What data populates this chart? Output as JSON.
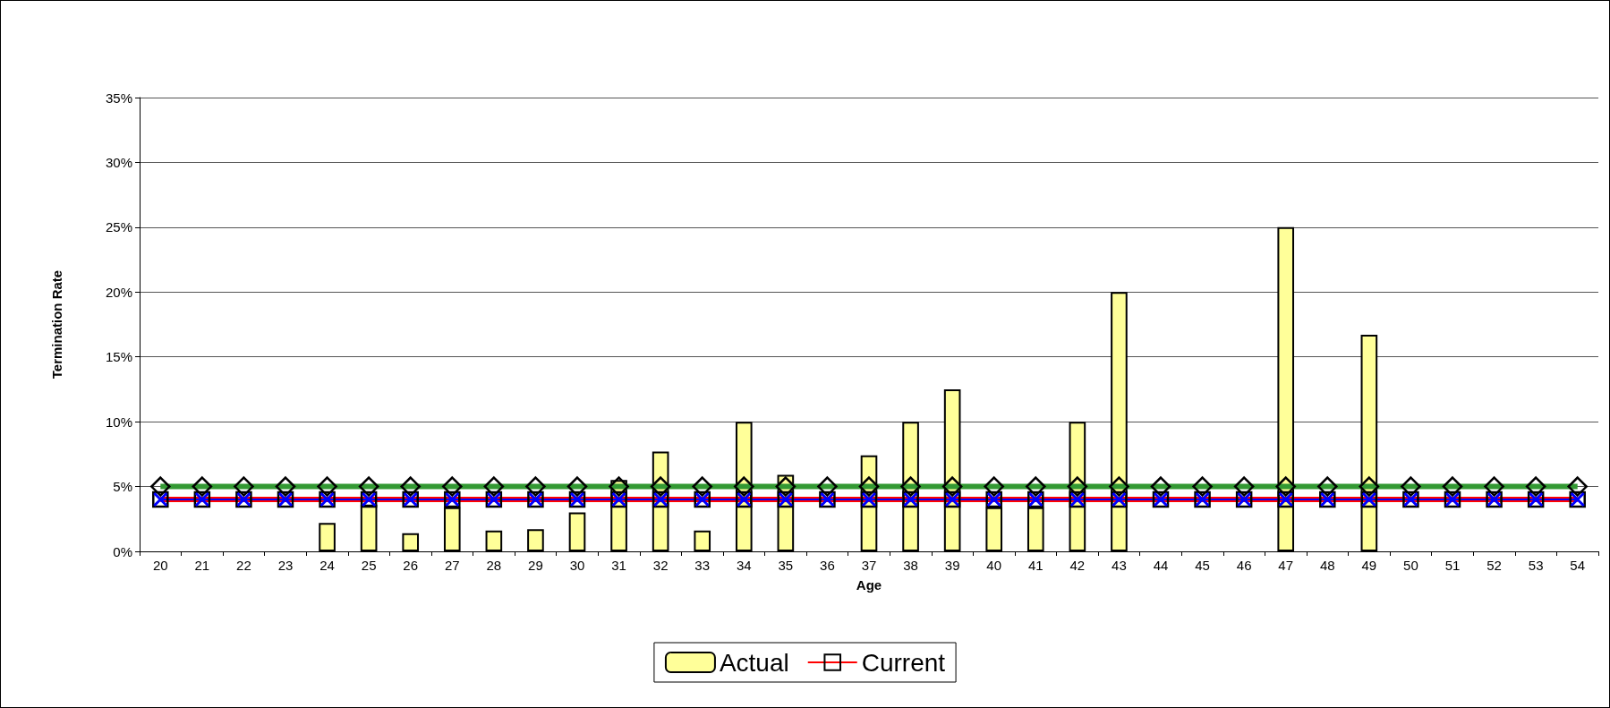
{
  "chart_data": {
    "type": "bar",
    "xlabel": "Age",
    "ylabel": "Termination Rate",
    "categories": [
      "20",
      "21",
      "22",
      "23",
      "24",
      "25",
      "26",
      "27",
      "28",
      "29",
      "30",
      "31",
      "32",
      "33",
      "34",
      "35",
      "36",
      "37",
      "38",
      "39",
      "40",
      "41",
      "42",
      "43",
      "44",
      "45",
      "46",
      "47",
      "48",
      "49",
      "50",
      "51",
      "52",
      "53",
      "54"
    ],
    "series": [
      {
        "name": "Actual",
        "color": "#ffff99",
        "values": [
          null,
          null,
          null,
          null,
          2.2,
          3.6,
          1.4,
          3.4,
          1.6,
          1.7,
          3.0,
          5.5,
          7.7,
          1.6,
          10,
          5.9,
          null,
          7.4,
          10,
          12.5,
          3.4,
          3.4,
          10,
          20,
          null,
          null,
          null,
          25,
          null,
          16.7,
          null,
          null,
          null,
          null,
          null
        ]
      },
      {
        "name": "Current",
        "type": "line",
        "color": "#ff0000",
        "marker": "square",
        "values": [
          4,
          4,
          4,
          4,
          4,
          4,
          4,
          4,
          4,
          4,
          4,
          4,
          4,
          4,
          4,
          4,
          4,
          4,
          4,
          4,
          4,
          4,
          4,
          4,
          4,
          4,
          4,
          4,
          4,
          4,
          4,
          4,
          4,
          4,
          4
        ]
      },
      {
        "type": "line",
        "color": "#339933",
        "marker": "diamond",
        "values": [
          5,
          5,
          5,
          5,
          5,
          5,
          5,
          5,
          5,
          5,
          5,
          5,
          5,
          5,
          5,
          5,
          5,
          5,
          5,
          5,
          5,
          5,
          5,
          5,
          5,
          5,
          5,
          5,
          5,
          5,
          5,
          5,
          5,
          5,
          5
        ]
      },
      {
        "type": "line",
        "color": "#0000ff",
        "marker": "cross",
        "values": [
          4,
          4,
          4,
          4,
          4,
          4,
          4,
          4,
          4,
          4,
          4,
          4,
          4,
          4,
          4,
          4,
          4,
          4,
          4,
          4,
          4,
          4,
          4,
          4,
          4,
          4,
          4,
          4,
          4,
          4,
          4,
          4,
          4,
          4,
          4
        ]
      }
    ],
    "ylim": [
      0,
      35
    ],
    "yticks": [
      {
        "value": 0,
        "label": "0%"
      },
      {
        "value": 5,
        "label": "5%"
      },
      {
        "value": 10,
        "label": "10%"
      },
      {
        "value": 15,
        "label": "15%"
      },
      {
        "value": 20,
        "label": "20%"
      },
      {
        "value": 25,
        "label": "25%"
      },
      {
        "value": 30,
        "label": "30%"
      },
      {
        "value": 35,
        "label": "35%"
      }
    ],
    "grid": "y",
    "legend": "bottom"
  }
}
